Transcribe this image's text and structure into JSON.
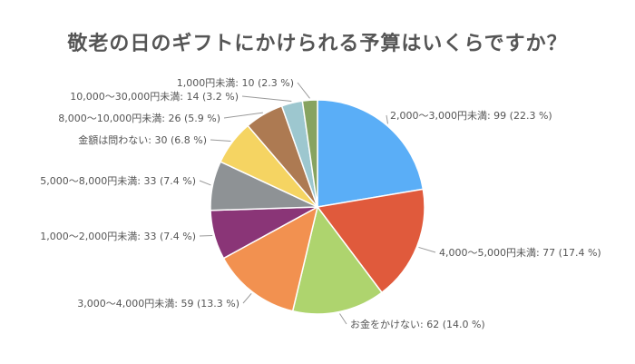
{
  "chart_data": {
    "type": "pie",
    "title": "敬老の日のギフトにかけられる予算はいくらですか？",
    "slices": [
      {
        "label": "2,000～3,000円未満: 99 (22.3 %)",
        "value": 99,
        "color": "#5AAEF7"
      },
      {
        "label": "4,000～5,000円未満: 77 (17.4 %)",
        "value": 77,
        "color": "#E05A3C"
      },
      {
        "label": "お金をかけない: 62 (14.0 %)",
        "value": 62,
        "color": "#AED46E"
      },
      {
        "label": "3,000～4,000円未満: 59 (13.3 %)",
        "value": 59,
        "color": "#F29150"
      },
      {
        "label": "1,000～2,000円未満: 33 (7.4 %)",
        "value": 33,
        "color": "#8A3577"
      },
      {
        "label": "5,000～8,000円未満: 33 (7.4 %)",
        "value": 33,
        "color": "#8E9295"
      },
      {
        "label": "金額は問わない: 30 (6.8 %)",
        "value": 30,
        "color": "#F5D462"
      },
      {
        "label": "8,000～10,000円未満: 26 (5.9 %)",
        "value": 26,
        "color": "#AD7A52"
      },
      {
        "label": "10,000～30,000円未満: 14 (3.2 %)",
        "value": 14,
        "color": "#9DC7CF"
      },
      {
        "label": "1,000円未満: 10 (2.3 %)",
        "value": 10,
        "color": "#87A360"
      }
    ]
  }
}
